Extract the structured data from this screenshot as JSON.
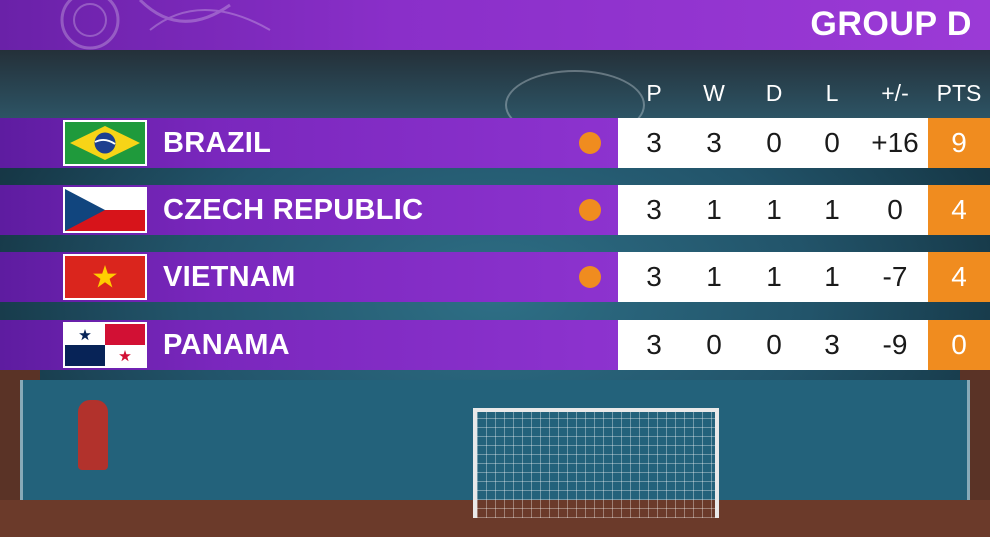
{
  "header": {
    "title": "GROUP D"
  },
  "columns": [
    "P",
    "W",
    "D",
    "L",
    "+/-",
    "PTS"
  ],
  "colors": {
    "banner_purple": "#8a2fc9",
    "stats_bg": "#ffffff",
    "points_bg": "#f08c1f",
    "qualified_dot": "#f08c1f"
  },
  "teams": [
    {
      "name": "BRAZIL",
      "flag": "brazil-flag-icon",
      "qualified": true,
      "p": "3",
      "w": "3",
      "d": "0",
      "l": "0",
      "gd": "+16",
      "pts": "9"
    },
    {
      "name": "CZECH REPUBLIC",
      "flag": "czech-republic-flag-icon",
      "qualified": true,
      "p": "3",
      "w": "1",
      "d": "1",
      "l": "1",
      "gd": "0",
      "pts": "4"
    },
    {
      "name": "VIETNAM",
      "flag": "vietnam-flag-icon",
      "qualified": true,
      "p": "3",
      "w": "1",
      "d": "1",
      "l": "1",
      "gd": "-7",
      "pts": "4"
    },
    {
      "name": "PANAMA",
      "flag": "panama-flag-icon",
      "qualified": false,
      "p": "3",
      "w": "0",
      "d": "0",
      "l": "3",
      "gd": "-9",
      "pts": "0"
    }
  ]
}
